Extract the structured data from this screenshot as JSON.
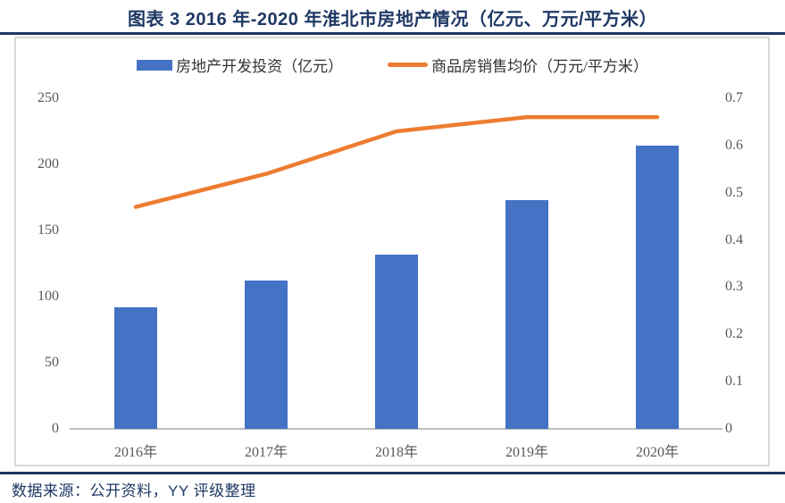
{
  "title": "图表 3 2016 年-2020 年淮北市房地产情况（亿元、万元/平方米）",
  "source_note": "数据来源：公开资料，YY 评级整理",
  "colors": {
    "accent_navy": "#1F3864",
    "bar_blue": "#4472C4",
    "line_orange": "#ED7D31",
    "axis_text_gray": "#595959",
    "frame_gray": "#D9D9D9",
    "axis_line_gray": "#BFBFBF"
  },
  "legend": {
    "bar_label": "房地产开发投资（亿元）",
    "line_label": "商品房销售均价（万元/平方米）"
  },
  "chart_data": {
    "type": "bar",
    "title": "图表 3 2016 年-2020 年淮北市房地产情况（亿元、万元/平方米）",
    "categories": [
      "2016年",
      "2017年",
      "2018年",
      "2019年",
      "2020年"
    ],
    "series": [
      {
        "name": "房地产开发投资（亿元）",
        "type": "bar",
        "axis": "left",
        "color": "#4472C4",
        "values": [
          92,
          112,
          132,
          173,
          214
        ]
      },
      {
        "name": "商品房销售均价（万元/平方米）",
        "type": "line",
        "axis": "right",
        "color": "#ED7D31",
        "values": [
          0.47,
          0.54,
          0.63,
          0.66,
          0.66
        ]
      }
    ],
    "left_axis": {
      "label": "",
      "min": 0,
      "max": 250,
      "step": 50,
      "ticks": [
        "0",
        "50",
        "100",
        "150",
        "200",
        "250"
      ]
    },
    "right_axis": {
      "label": "",
      "min": 0,
      "max": 0.7,
      "step": 0.1,
      "ticks": [
        "0",
        "0.1",
        "0.2",
        "0.3",
        "0.4",
        "0.5",
        "0.6",
        "0.7"
      ]
    },
    "grid": false,
    "legend_position": "top-center"
  }
}
